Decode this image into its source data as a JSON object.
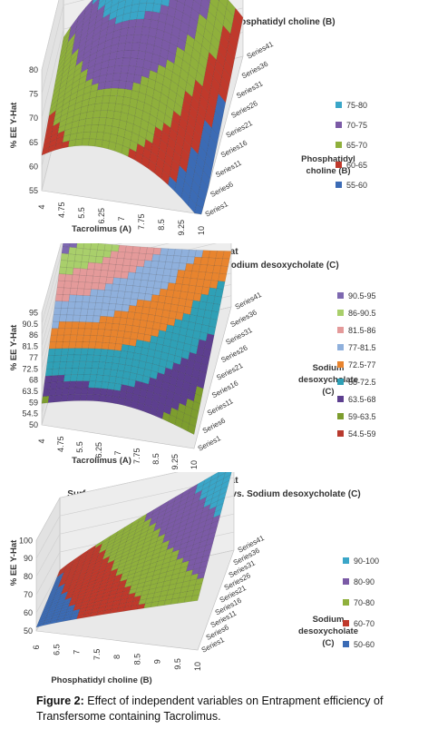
{
  "figure": {
    "caption_label": "Figure 2:",
    "caption_text": "Effect of independent variables on Entrapment efficiency of Transfersome containing Tacrolimus."
  },
  "chart_data": [
    {
      "type": "surface",
      "title": "% EE Y-Hat",
      "subtitle": "Surface Plot Tacrolimus (A) vs. Phosphatidyl choline  (B)",
      "xlabel": "Tacrolimus (A)",
      "ylabel": "% EE Y-Hat",
      "depth_label": "Phosphatidyl choline  (B)",
      "x_ticks": [
        "4",
        "4.75",
        "5.5",
        "6.25",
        "7",
        "7.75",
        "8.5",
        "9.25",
        "10"
      ],
      "depth_ticks": [
        "Series1",
        "Series6",
        "Series11",
        "Series16",
        "Series21",
        "Series26",
        "Series31",
        "Series36",
        "Series41"
      ],
      "y_ticks": [
        "55",
        "60",
        "65",
        "70",
        "75",
        "80"
      ],
      "ylim": [
        55,
        80
      ],
      "legend": [
        {
          "label": "75-80",
          "color": "#3aa6c8"
        },
        {
          "label": "70-75",
          "color": "#7b5aa6"
        },
        {
          "label": "65-70",
          "color": "#8fb03c"
        },
        {
          "label": "60-65",
          "color": "#c0392b"
        },
        {
          "label": "55-60",
          "color": "#3b6bb5"
        }
      ],
      "surface": {
        "rows": 41,
        "cols": 41,
        "x_range": [
          4,
          10
        ],
        "depth_range": [
          1,
          41
        ],
        "peak_value": 79,
        "peak_x_frac": 0.45,
        "peak_depth_frac": 1.0,
        "min_value": 55
      }
    },
    {
      "type": "surface",
      "title": "% EE Y-Hat",
      "subtitle": "Surface Plot Tacrolimus (A) vs. Sodium desoxycholate  (C)",
      "xlabel": "Tacrolimus (A)",
      "ylabel": "% EE Y-Hat",
      "depth_label": "Sodium desoxycholate (C)",
      "x_ticks": [
        "4",
        "4.75",
        "5.5",
        "6.25",
        "7",
        "7.75",
        "8.5",
        "9.25",
        "10"
      ],
      "depth_ticks": [
        "Series1",
        "Series6",
        "Series11",
        "Series16",
        "Series21",
        "Series26",
        "Series31",
        "Series36",
        "Series41"
      ],
      "y_ticks": [
        "50",
        "54.5",
        "59",
        "63.5",
        "68",
        "72.5",
        "77",
        "81.5",
        "86",
        "90.5",
        "95"
      ],
      "ylim": [
        50,
        95
      ],
      "legend": [
        {
          "label": "90.5-95",
          "color": "#7d68b0"
        },
        {
          "label": "86-90.5",
          "color": "#a9cf6b"
        },
        {
          "label": "81.5-86",
          "color": "#e49a9a"
        },
        {
          "label": "77-81.5",
          "color": "#8fb0dc"
        },
        {
          "label": "72.5-77",
          "color": "#e8842e"
        },
        {
          "label": "68-72.5",
          "color": "#2fa0b6"
        },
        {
          "label": "63.5-68",
          "color": "#5d3f8f"
        },
        {
          "label": "59-63.5",
          "color": "#7d9d2e"
        },
        {
          "label": "54.5-59",
          "color": "#b83a2e"
        }
      ],
      "surface": {
        "rows": 41,
        "cols": 41,
        "x_range": [
          4,
          10
        ],
        "depth_range": [
          1,
          41
        ],
        "peak_value": 93,
        "min_value": 50
      }
    },
    {
      "type": "surface",
      "title": "% EE Y-Hat",
      "subtitle": "Surface Plot Phosphatidyl choline  (B) vs. Sodium desoxycholate  (C)",
      "xlabel": "Phosphatidyl choline  (B)",
      "ylabel": "% EE Y-Hat",
      "depth_label": "Sodium desoxycholate (C)",
      "x_ticks": [
        "6",
        "6.5",
        "7",
        "7.5",
        "8",
        "8.5",
        "9",
        "9.5",
        "10"
      ],
      "depth_ticks": [
        "Series1",
        "Series6",
        "Series11",
        "Series16",
        "Series21",
        "Series26",
        "Series31",
        "Series36",
        "Series41"
      ],
      "y_ticks": [
        "50",
        "60",
        "70",
        "80",
        "90",
        "100"
      ],
      "ylim": [
        50,
        100
      ],
      "legend": [
        {
          "label": "90-100",
          "color": "#3aa6c8"
        },
        {
          "label": "80-90",
          "color": "#7b5aa6"
        },
        {
          "label": "70-80",
          "color": "#8fb03c"
        },
        {
          "label": "60-70",
          "color": "#c0392b"
        },
        {
          "label": "50-60",
          "color": "#3b6bb5"
        }
      ],
      "surface": {
        "rows": 41,
        "cols": 41,
        "x_range": [
          6,
          10
        ],
        "depth_range": [
          1,
          41
        ],
        "peak_value": 100,
        "min_value": 52
      }
    }
  ]
}
